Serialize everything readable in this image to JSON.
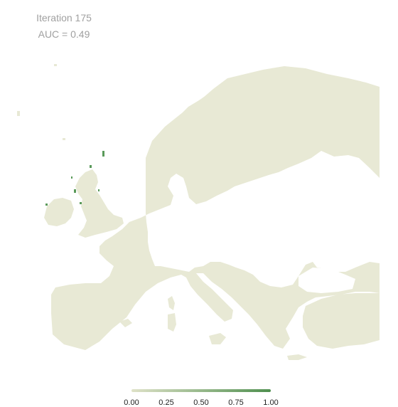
{
  "header": {
    "iteration": "Iteration 175",
    "auc": "AUC = 0.49"
  },
  "map": {
    "region": "Europe",
    "land_color": "#e8e9d5",
    "sea_color": "#ffffff",
    "presence_color": "#5a9a5a"
  },
  "legend": {
    "ticks": [
      "0.00",
      "0.25",
      "0.50",
      "0.75",
      "1.00"
    ],
    "range": [
      0,
      1
    ],
    "color_low": "#dfe2c8",
    "color_high": "#4f8f4f"
  }
}
